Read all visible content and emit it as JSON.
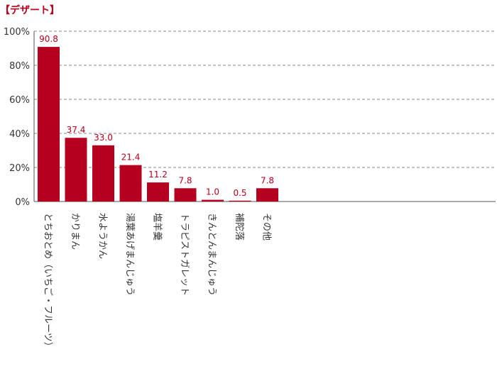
{
  "title": "【デザート】",
  "colors": {
    "bar": "#b5001f",
    "title": "#b5001f",
    "grid": "#8a8a8a",
    "axis": "#555555"
  },
  "chart_data": {
    "type": "bar",
    "title": "【デザート】",
    "categories": [
      "とちおとめ（いちご・フルーツ）",
      "かりまん",
      "水ようかん",
      "湯葉あげまんじゅう",
      "塩羊羹",
      "トラピストガレット",
      "きんとんまんじゅう",
      "補陀落",
      "その他"
    ],
    "values": [
      90.8,
      37.4,
      33.0,
      21.4,
      11.2,
      7.8,
      1.0,
      0.5,
      7.8
    ],
    "data_labels": [
      "90.8",
      "37.4",
      "33.0",
      "21.4",
      "11.2",
      "7.8",
      "1.0",
      "0.5",
      "7.8"
    ],
    "yticks": [
      "0%",
      "20%",
      "40%",
      "60%",
      "80%",
      "100%"
    ],
    "ytick_values": [
      0,
      20,
      40,
      60,
      80,
      100
    ],
    "ylim": [
      0,
      100
    ],
    "grid": "dashed horizontal",
    "xlabel": "",
    "ylabel": ""
  }
}
